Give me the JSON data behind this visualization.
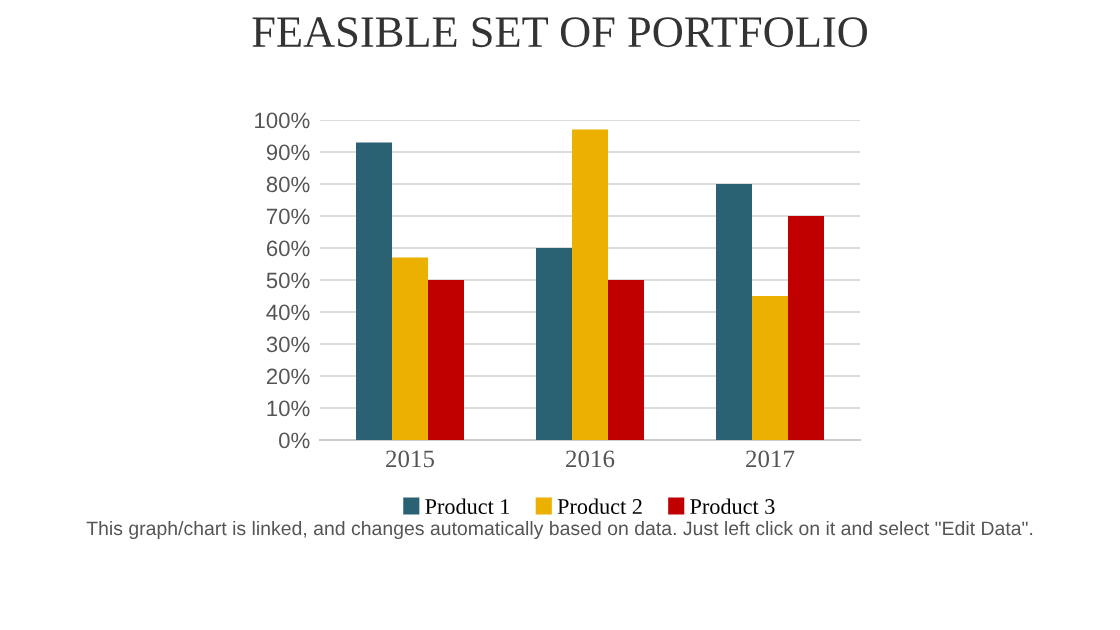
{
  "chart_data": {
    "type": "bar",
    "title": "FEASIBLE SET OF PORTFOLIO",
    "categories": [
      "2015",
      "2016",
      "2017"
    ],
    "series": [
      {
        "name": "Product 1",
        "color": "#2a6273",
        "values": [
          93,
          60,
          80
        ]
      },
      {
        "name": "Product 2",
        "color": "#ebb000",
        "values": [
          57,
          97,
          45
        ]
      },
      {
        "name": "Product 3",
        "color": "#c00000",
        "values": [
          50,
          50,
          70
        ]
      }
    ],
    "ylim": [
      0,
      100
    ],
    "yticks": [
      {
        "value": 0,
        "label": "0%"
      },
      {
        "value": 10,
        "label": "10%"
      },
      {
        "value": 20,
        "label": "20%"
      },
      {
        "value": 30,
        "label": "30%"
      },
      {
        "value": 40,
        "label": "40%"
      },
      {
        "value": 50,
        "label": "50%"
      },
      {
        "value": 60,
        "label": "60%"
      },
      {
        "value": 70,
        "label": "70%"
      },
      {
        "value": 80,
        "label": "80%"
      },
      {
        "value": 90,
        "label": "90%"
      },
      {
        "value": 100,
        "label": "100%"
      }
    ],
    "grid": "y",
    "legend": "bottom",
    "annotations": [
      "This graph/chart is linked, and changes automatically based on data. Just left click on it and select \"Edit Data\"."
    ]
  }
}
